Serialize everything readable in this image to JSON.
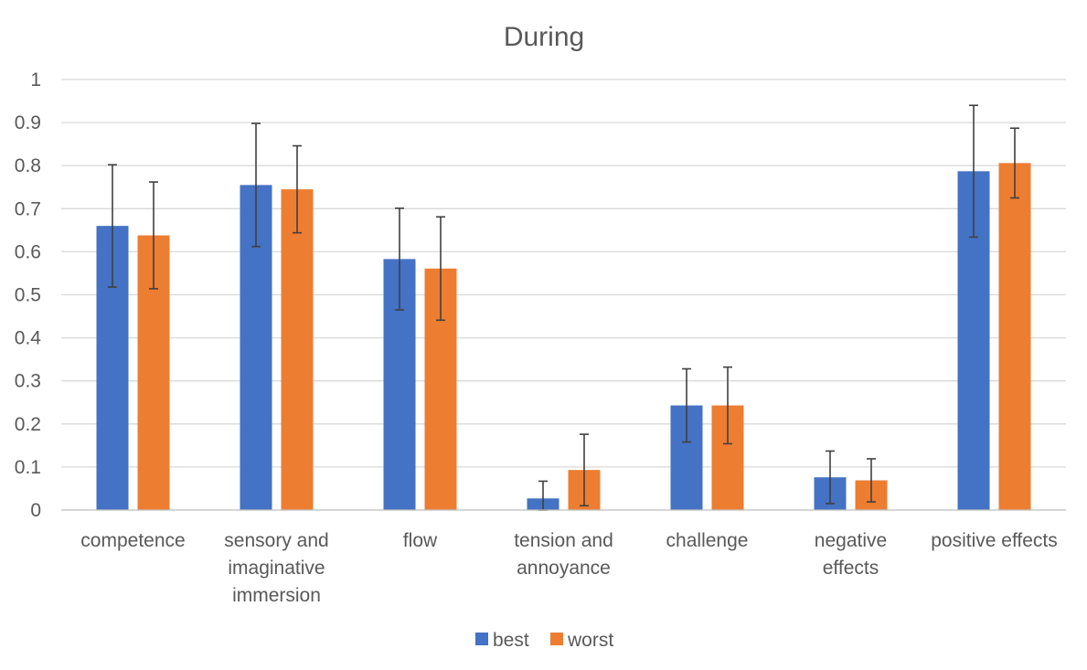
{
  "chart_data": {
    "type": "bar",
    "title": "During",
    "categories": [
      "competence",
      "sensory and imaginative immersion",
      "flow",
      "tension and annoyance",
      "challenge",
      "negative effects",
      "positive effects"
    ],
    "category_lines": [
      [
        "competence"
      ],
      [
        "sensory and",
        "imaginative",
        "immersion"
      ],
      [
        "flow"
      ],
      [
        "tension and",
        "annoyance"
      ],
      [
        "challenge"
      ],
      [
        "negative",
        "effects"
      ],
      [
        "positive effects"
      ]
    ],
    "series": [
      {
        "name": "best",
        "color": "#4472C4",
        "values": [
          0.66,
          0.755,
          0.583,
          0.027,
          0.243,
          0.076,
          0.787
        ],
        "error": [
          0.142,
          0.143,
          0.118,
          0.04,
          0.085,
          0.061,
          0.153
        ]
      },
      {
        "name": "worst",
        "color": "#ED7D31",
        "values": [
          0.638,
          0.745,
          0.561,
          0.093,
          0.243,
          0.069,
          0.806
        ],
        "error": [
          0.124,
          0.101,
          0.12,
          0.083,
          0.089,
          0.05,
          0.081
        ]
      }
    ],
    "xlabel": "",
    "ylabel": "",
    "ylim": [
      0,
      1
    ],
    "yticks": [
      "0",
      "0.1",
      "0.2",
      "0.3",
      "0.4",
      "0.5",
      "0.6",
      "0.7",
      "0.8",
      "0.9",
      "1"
    ],
    "grid": true,
    "legend_position": "bottom"
  }
}
